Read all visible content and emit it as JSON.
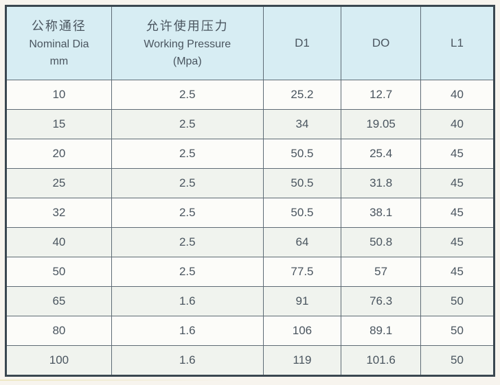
{
  "table": {
    "headers": {
      "col1": {
        "zh": "公称通径",
        "en": "Nominal Dia",
        "unit": "mm"
      },
      "col2": {
        "zh": "允许使用压力",
        "en": "Working Pressure",
        "unit": "(Mpa)"
      },
      "col3": {
        "label": "D1"
      },
      "col4": {
        "label": "DO"
      },
      "col5": {
        "label": "L1"
      }
    },
    "columns_semantics": [
      "nominal-diameter-mm",
      "working-pressure-mpa",
      "d1",
      "do",
      "l1"
    ],
    "rows": [
      [
        "10",
        "2.5",
        "25.2",
        "12.7",
        "40"
      ],
      [
        "15",
        "2.5",
        "34",
        "19.05",
        "40"
      ],
      [
        "20",
        "2.5",
        "50.5",
        "25.4",
        "45"
      ],
      [
        "25",
        "2.5",
        "50.5",
        "31.8",
        "45"
      ],
      [
        "32",
        "2.5",
        "50.5",
        "38.1",
        "45"
      ],
      [
        "40",
        "2.5",
        "64",
        "50.8",
        "45"
      ],
      [
        "50",
        "2.5",
        "77.5",
        "57",
        "45"
      ],
      [
        "65",
        "1.6",
        "91",
        "76.3",
        "50"
      ],
      [
        "80",
        "1.6",
        "106",
        "89.1",
        "50"
      ],
      [
        "100",
        "1.6",
        "119",
        "101.6",
        "50"
      ]
    ],
    "colors": {
      "header_bg": "#d7edf3",
      "row_bg": "#fcfcf9",
      "row_alt_bg": "#f0f3ee",
      "outer_border": "#3a4750",
      "grid_line": "#5d6a74",
      "text": "#4a555f",
      "page_bg": "#f7f4ee"
    }
  }
}
